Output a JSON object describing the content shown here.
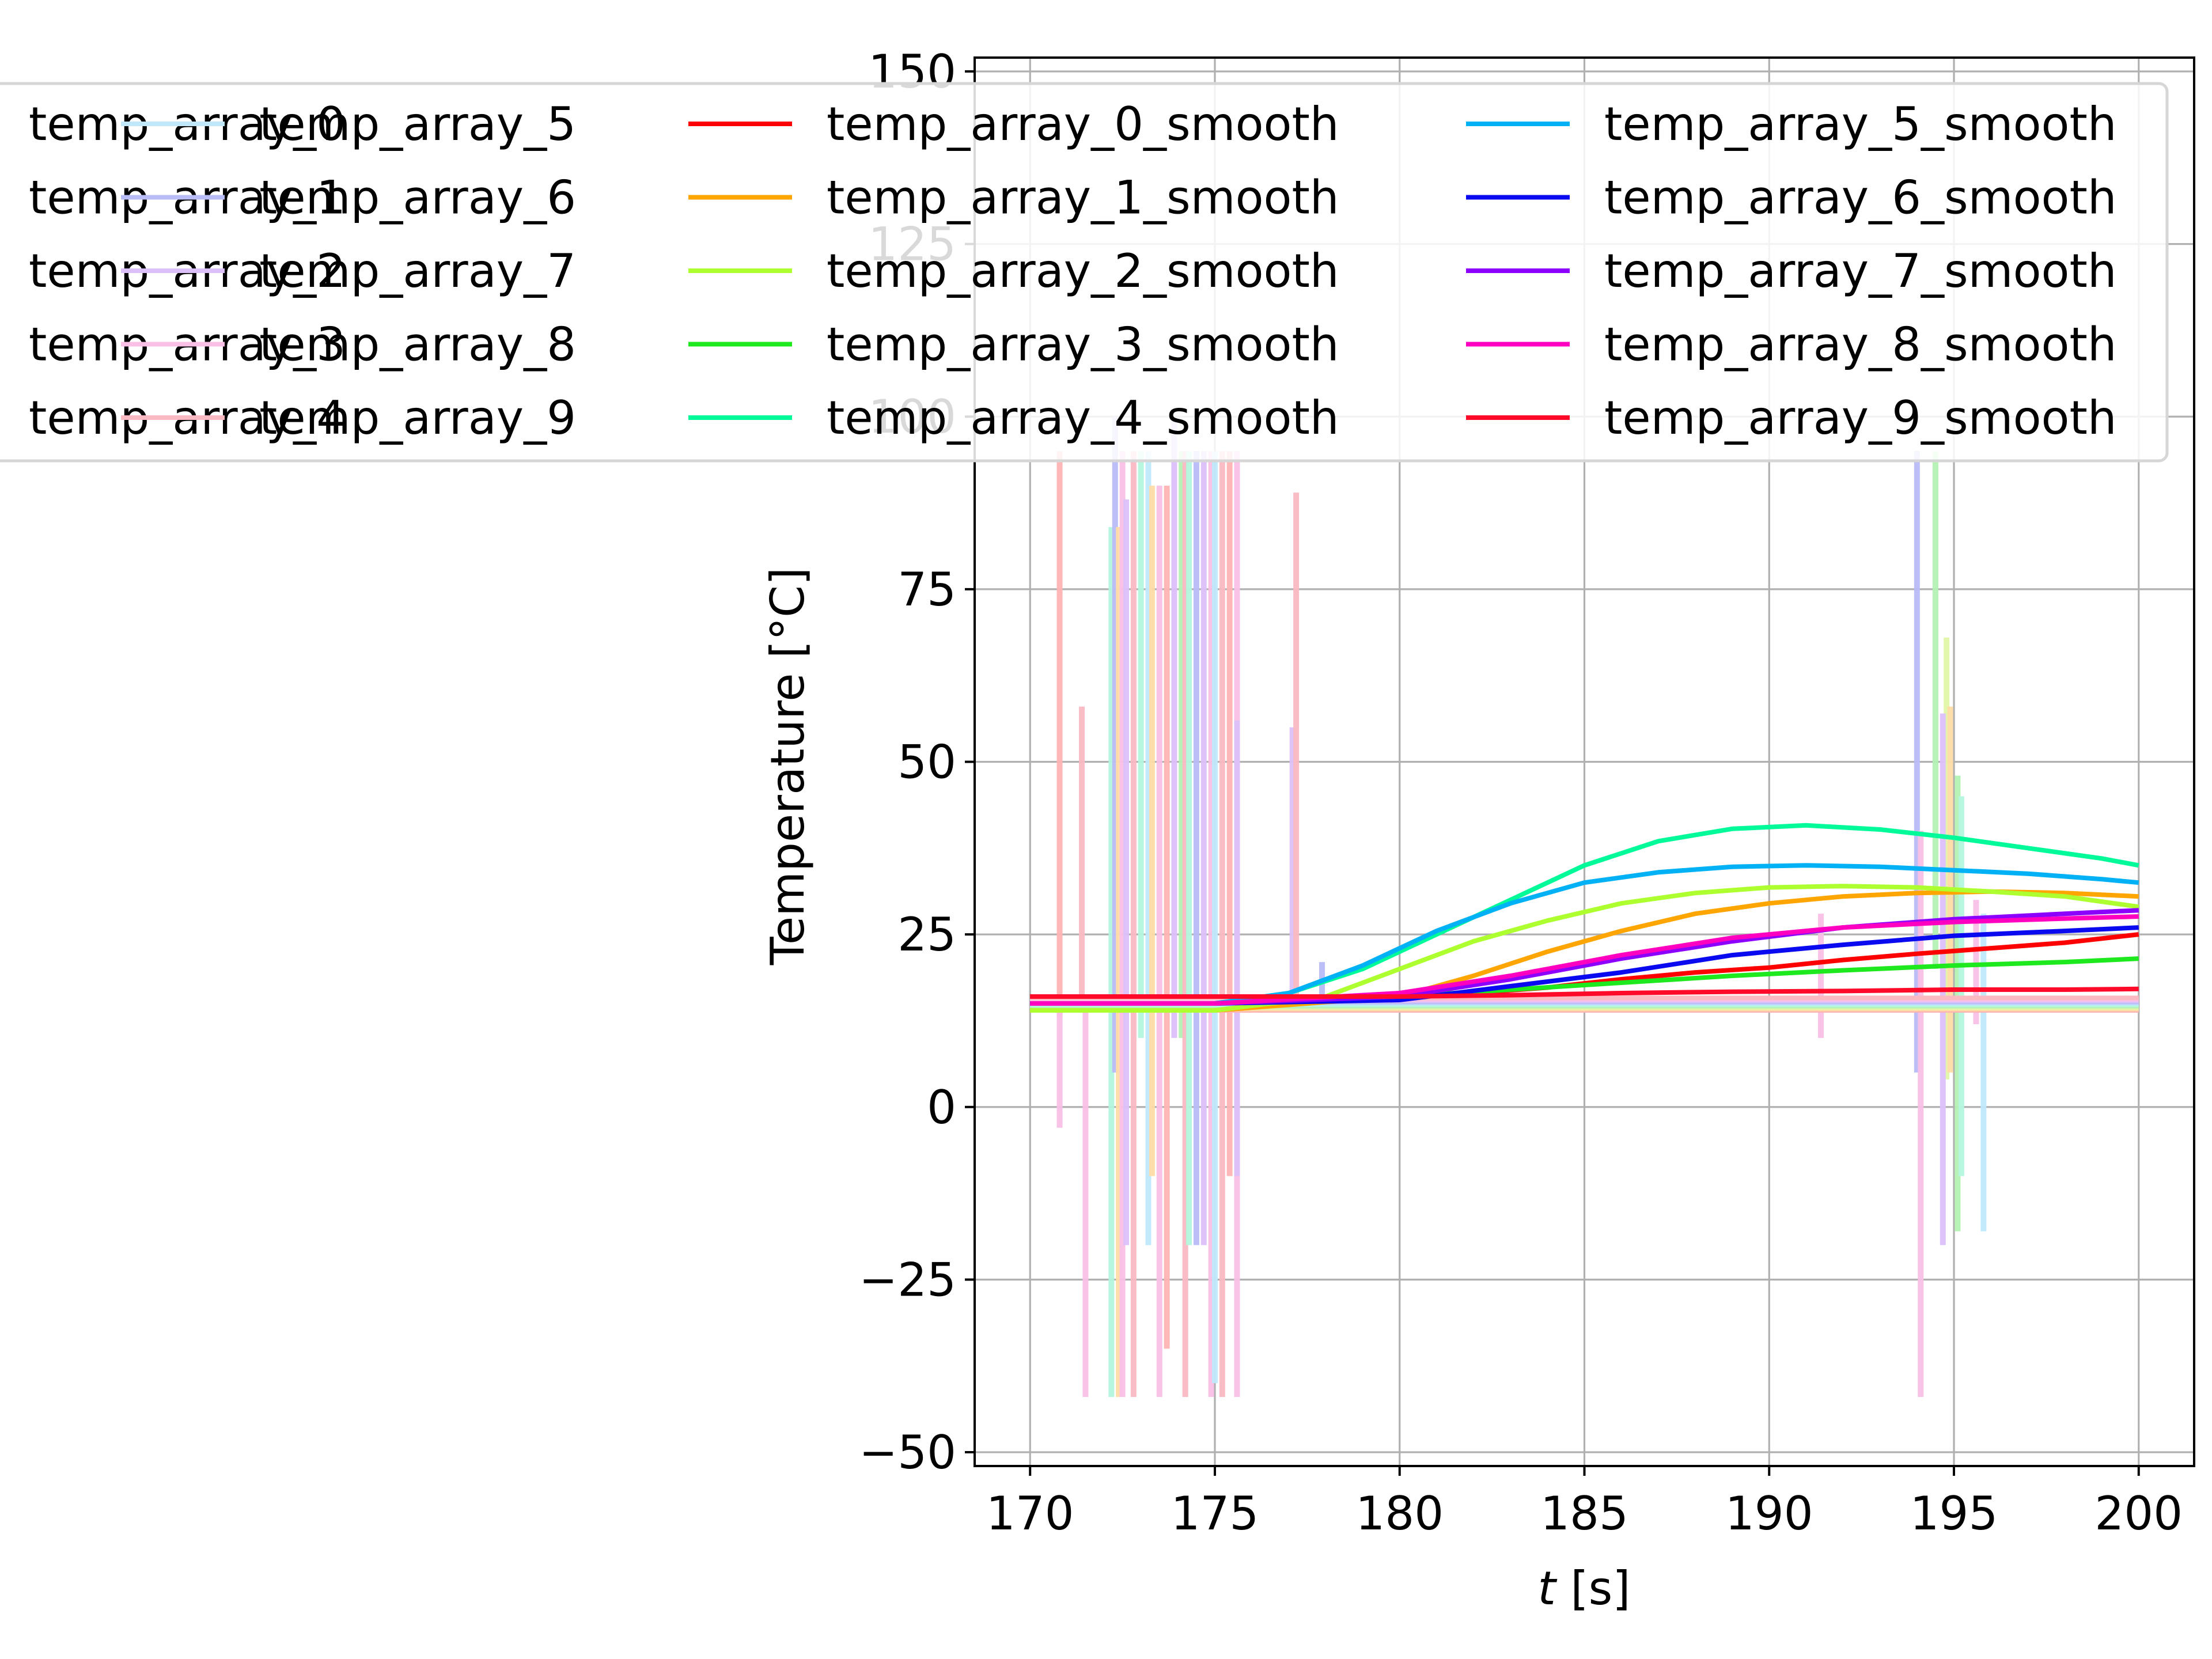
{
  "chart_data": {
    "type": "line",
    "title": "",
    "xlabel_italic": "t",
    "xlabel_unit": " [s]",
    "ylabel": "Temperature [°C]",
    "xlim": [
      168.5,
      201.5
    ],
    "ylim": [
      -52,
      152
    ],
    "x_ticks": [
      170,
      175,
      180,
      185,
      190,
      195,
      200
    ],
    "y_ticks": [
      -50,
      -25,
      0,
      25,
      50,
      75,
      100,
      125,
      150
    ],
    "x_tick_labels": [
      "170",
      "175",
      "180",
      "185",
      "190",
      "195",
      "200"
    ],
    "y_tick_labels": [
      "−50",
      "−25",
      "0",
      "25",
      "50",
      "75",
      "100",
      "125",
      "150"
    ],
    "grid": true,
    "legend": {
      "placement": "upper-left, extending outside axes",
      "columns": 4,
      "entries": [
        {
          "label": "temp_array_0",
          "color": "#ffb3b3"
        },
        {
          "label": "temp_array_1",
          "color": "#ffdca6"
        },
        {
          "label": "temp_array_2",
          "color": "#e2f7a8"
        },
        {
          "label": "temp_array_3",
          "color": "#b3f2b3"
        },
        {
          "label": "temp_array_4",
          "color": "#b3f7dd"
        },
        {
          "label": "temp_array_5",
          "color": "#bfe9fb"
        },
        {
          "label": "temp_array_6",
          "color": "#b8bcf7"
        },
        {
          "label": "temp_array_7",
          "color": "#dcc0fa"
        },
        {
          "label": "temp_array_8",
          "color": "#f9bfe6"
        },
        {
          "label": "temp_array_9",
          "color": "#fbb9c2"
        },
        {
          "label": "temp_array_0_smooth",
          "color": "#ff0000"
        },
        {
          "label": "temp_array_1_smooth",
          "color": "#ffa500"
        },
        {
          "label": "temp_array_2_smooth",
          "color": "#adff2f"
        },
        {
          "label": "temp_array_3_smooth",
          "color": "#1ee81e"
        },
        {
          "label": "temp_array_4_smooth",
          "color": "#00fa9a"
        },
        {
          "label": "temp_array_5_smooth",
          "color": "#00b2f5"
        },
        {
          "label": "temp_array_6_smooth",
          "color": "#0a0af0"
        },
        {
          "label": "temp_array_7_smooth",
          "color": "#8b00ff"
        },
        {
          "label": "temp_array_8_smooth",
          "color": "#ff00c0"
        },
        {
          "label": "temp_array_9_smooth",
          "color": "#ff0a28"
        }
      ]
    },
    "series": [
      {
        "name": "temp_array_0_smooth",
        "color": "#ff0000",
        "x": [
          170,
          175,
          180,
          182,
          184,
          186,
          188,
          190,
          192,
          194,
          196,
          198,
          200
        ],
        "y": [
          16,
          16,
          16,
          16.5,
          17.3,
          18.5,
          19.5,
          20.2,
          21.3,
          22.2,
          23.0,
          23.8,
          25.0
        ]
      },
      {
        "name": "temp_array_1_smooth",
        "color": "#ffa500",
        "x": [
          170,
          175,
          180,
          182,
          184,
          186,
          188,
          190,
          192,
          194,
          196,
          198,
          200
        ],
        "y": [
          14,
          14,
          16,
          19,
          22.5,
          25.5,
          28,
          29.5,
          30.5,
          31,
          31.2,
          31,
          30.5
        ]
      },
      {
        "name": "temp_array_2_smooth",
        "color": "#adff2f",
        "x": [
          170,
          175,
          178,
          180,
          182,
          184,
          186,
          188,
          190,
          192,
          194,
          196,
          198,
          200
        ],
        "y": [
          14,
          14,
          16,
          20,
          24,
          27,
          29.5,
          31,
          31.8,
          32,
          31.8,
          31.2,
          30.5,
          29
        ]
      },
      {
        "name": "temp_array_3_smooth",
        "color": "#1ee81e",
        "x": [
          170,
          175,
          180,
          183,
          186,
          189,
          192,
          195,
          198,
          200
        ],
        "y": [
          15,
          15,
          16,
          17,
          18,
          19,
          19.8,
          20.5,
          21,
          21.5
        ]
      },
      {
        "name": "temp_array_4_smooth",
        "color": "#00fa9a",
        "x": [
          170,
          175,
          177,
          179,
          181,
          183,
          185,
          187,
          189,
          191,
          193,
          195,
          197,
          199,
          200
        ],
        "y": [
          15,
          15,
          16.5,
          20,
          25,
          30,
          35,
          38.5,
          40.3,
          40.8,
          40.2,
          39,
          37.5,
          36,
          35
        ]
      },
      {
        "name": "temp_array_5_smooth",
        "color": "#00b2f5",
        "x": [
          170,
          175,
          177,
          179,
          181,
          183,
          185,
          187,
          189,
          191,
          193,
          195,
          197,
          199,
          200
        ],
        "y": [
          15,
          15,
          16.5,
          20.5,
          25.5,
          29.5,
          32.5,
          34,
          34.8,
          35,
          34.8,
          34.3,
          33.8,
          33,
          32.5
        ]
      },
      {
        "name": "temp_array_6_smooth",
        "color": "#0a0af0",
        "x": [
          170,
          175,
          180,
          183,
          186,
          189,
          192,
          195,
          198,
          200
        ],
        "y": [
          15,
          15,
          15.5,
          17.5,
          19.5,
          22,
          23.5,
          24.8,
          25.5,
          26
        ]
      },
      {
        "name": "temp_array_7_smooth",
        "color": "#8b00ff",
        "x": [
          170,
          175,
          180,
          183,
          186,
          189,
          192,
          195,
          198,
          200
        ],
        "y": [
          15,
          15,
          16,
          18.5,
          21.5,
          24,
          26,
          27.2,
          28,
          28.5
        ]
      },
      {
        "name": "temp_array_8_smooth",
        "color": "#ff00c0",
        "x": [
          170,
          175,
          180,
          183,
          186,
          189,
          192,
          195,
          198,
          200
        ],
        "y": [
          15,
          15,
          16.5,
          19,
          22,
          24.5,
          26,
          26.8,
          27.3,
          27.6
        ]
      },
      {
        "name": "temp_array_9_smooth",
        "color": "#ff0a28",
        "x": [
          170,
          175,
          180,
          183,
          186,
          189,
          192,
          195,
          198,
          200
        ],
        "y": [
          16,
          16,
          16,
          16.2,
          16.5,
          16.7,
          16.8,
          17,
          17,
          17.1
        ]
      }
    ],
    "raw_baseline": {
      "x": [
        170,
        200
      ],
      "y": [
        15,
        15
      ]
    },
    "raw_spikes": [
      {
        "series": 0,
        "x": 170.8,
        "y0": 13,
        "y1": 95
      },
      {
        "series": 9,
        "x": 171.4,
        "y0": 14,
        "y1": 58
      },
      {
        "series": 8,
        "x": 170.8,
        "y0": -3,
        "y1": 14
      },
      {
        "series": 8,
        "x": 171.5,
        "y0": -42,
        "y1": 14
      },
      {
        "series": 4,
        "x": 172.2,
        "y0": -42,
        "y1": 84
      },
      {
        "series": 6,
        "x": 172.3,
        "y0": 5,
        "y1": 100
      },
      {
        "series": 1,
        "x": 172.4,
        "y0": -42,
        "y1": 84
      },
      {
        "series": 8,
        "x": 172.5,
        "y0": -42,
        "y1": 95
      },
      {
        "series": 7,
        "x": 172.6,
        "y0": -20,
        "y1": 88
      },
      {
        "series": 9,
        "x": 172.8,
        "y0": -42,
        "y1": 95
      },
      {
        "series": 4,
        "x": 173.0,
        "y0": 10,
        "y1": 95
      },
      {
        "series": 5,
        "x": 173.2,
        "y0": -20,
        "y1": 95
      },
      {
        "series": 1,
        "x": 173.3,
        "y0": -10,
        "y1": 90
      },
      {
        "series": 8,
        "x": 173.5,
        "y0": -42,
        "y1": 90
      },
      {
        "series": 0,
        "x": 173.7,
        "y0": -35,
        "y1": 90
      },
      {
        "series": 7,
        "x": 173.9,
        "y0": 10,
        "y1": 100
      },
      {
        "series": 3,
        "x": 174.1,
        "y0": 10,
        "y1": 95
      },
      {
        "series": 9,
        "x": 174.2,
        "y0": -42,
        "y1": 95
      },
      {
        "series": 4,
        "x": 174.3,
        "y0": -20,
        "y1": 95
      },
      {
        "series": 6,
        "x": 174.5,
        "y0": -20,
        "y1": 95
      },
      {
        "series": 7,
        "x": 174.7,
        "y0": -20,
        "y1": 95
      },
      {
        "series": 8,
        "x": 174.9,
        "y0": -42,
        "y1": 95
      },
      {
        "series": 9,
        "x": 175.2,
        "y0": -42,
        "y1": 95
      },
      {
        "series": 5,
        "x": 175.0,
        "y0": -40,
        "y1": 95
      },
      {
        "series": 0,
        "x": 175.4,
        "y0": -10,
        "y1": 95
      },
      {
        "series": 8,
        "x": 175.6,
        "y0": -42,
        "y1": 95
      },
      {
        "series": 7,
        "x": 175.6,
        "y0": -10,
        "y1": 56
      },
      {
        "series": 7,
        "x": 177.1,
        "y0": 14,
        "y1": 55
      },
      {
        "series": 9,
        "x": 177.2,
        "y0": 14,
        "y1": 89
      },
      {
        "series": 6,
        "x": 177.9,
        "y0": 14,
        "y1": 21
      },
      {
        "series": 8,
        "x": 191.4,
        "y0": 10,
        "y1": 28
      },
      {
        "series": 6,
        "x": 194.0,
        "y0": 5,
        "y1": 95
      },
      {
        "series": 8,
        "x": 194.1,
        "y0": -42,
        "y1": 40
      },
      {
        "series": 3,
        "x": 194.5,
        "y0": 20,
        "y1": 95
      },
      {
        "series": 2,
        "x": 194.8,
        "y0": 4,
        "y1": 68
      },
      {
        "series": 7,
        "x": 194.7,
        "y0": -20,
        "y1": 57
      },
      {
        "series": 1,
        "x": 194.9,
        "y0": 5,
        "y1": 58
      },
      {
        "series": 3,
        "x": 195.1,
        "y0": -18,
        "y1": 48
      },
      {
        "series": 4,
        "x": 195.2,
        "y0": -10,
        "y1": 45
      },
      {
        "series": 8,
        "x": 195.6,
        "y0": 12,
        "y1": 30
      },
      {
        "series": 5,
        "x": 195.8,
        "y0": -18,
        "y1": 28
      }
    ]
  }
}
